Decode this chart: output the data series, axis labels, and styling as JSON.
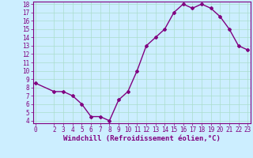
{
  "x": [
    0,
    2,
    3,
    4,
    5,
    6,
    7,
    8,
    9,
    10,
    11,
    12,
    13,
    14,
    15,
    16,
    17,
    18,
    19,
    20,
    21,
    22,
    23
  ],
  "y": [
    8.5,
    7.5,
    7.5,
    7.0,
    6.0,
    4.5,
    4.5,
    4.0,
    6.5,
    7.5,
    10.0,
    13.0,
    14.0,
    15.0,
    17.0,
    18.0,
    17.5,
    18.0,
    17.5,
    16.5,
    15.0,
    13.0,
    12.5
  ],
  "line_color": "#800080",
  "marker": "D",
  "marker_size": 2.0,
  "bg_color": "#cceeff",
  "grid_color": "#aaddcc",
  "xlabel": "Windchill (Refroidissement éolien,°C)",
  "xlabel_color": "#800080",
  "tick_color": "#800080",
  "ylim_min": 4,
  "ylim_max": 18,
  "xlim_min": 0,
  "xlim_max": 23,
  "yticks": [
    4,
    5,
    6,
    7,
    8,
    9,
    10,
    11,
    12,
    13,
    14,
    15,
    16,
    17,
    18
  ],
  "xticks": [
    0,
    2,
    3,
    4,
    5,
    6,
    7,
    8,
    9,
    10,
    11,
    12,
    13,
    14,
    15,
    16,
    17,
    18,
    19,
    20,
    21,
    22,
    23
  ],
  "tick_fontsize": 5.5,
  "xlabel_fontsize": 6.5,
  "linewidth": 1.0
}
